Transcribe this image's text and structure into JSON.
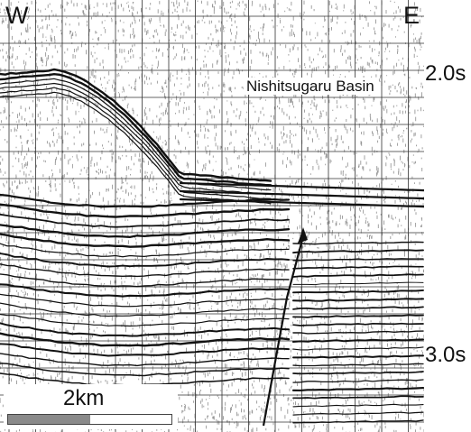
{
  "figure": {
    "direction_left": "W",
    "direction_right": "E",
    "basin_name": "Nishitsugaru Basin",
    "time_marks": [
      "2.0s",
      "3.0s"
    ],
    "scale_bar_label": "2km"
  },
  "colors": {
    "ink": "#111111",
    "paper": "#ffffff",
    "scale_fill": "#8a8a8a"
  }
}
